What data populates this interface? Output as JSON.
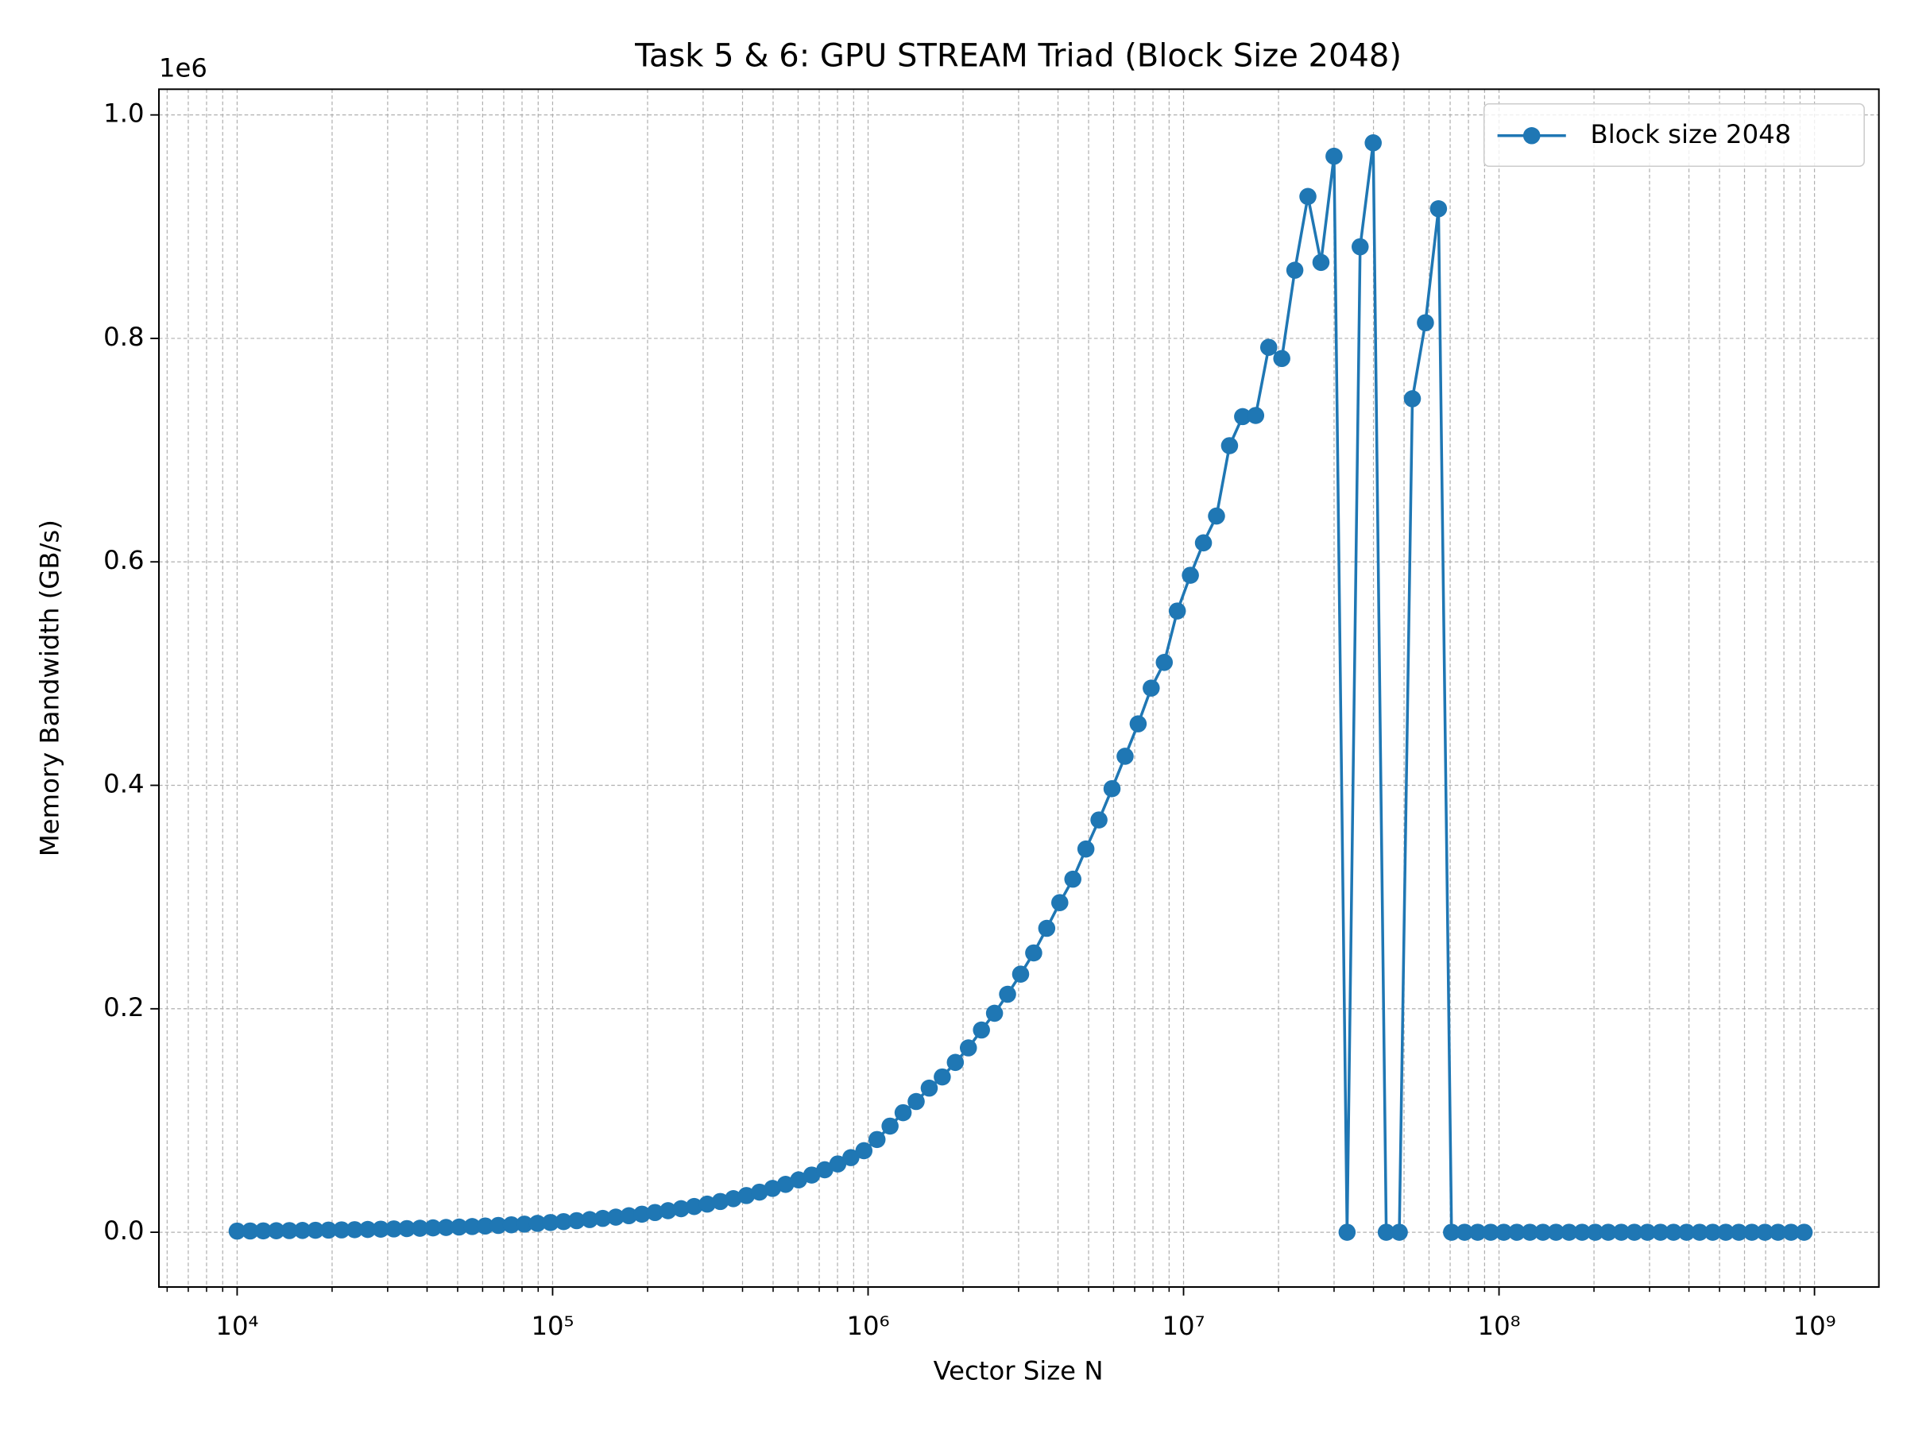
{
  "chart_data": {
    "type": "line",
    "title": "Task 5 & 6: GPU STREAM Triad (Block Size 2048)",
    "xlabel": "Vector Size N",
    "ylabel": "Memory Bandwidth (GB/s)",
    "y_offset_label": "1e6",
    "xscale": "log",
    "grid": true,
    "legend_position": "upper right",
    "xlim": [
      5650,
      1600000000
    ],
    "ylim": [
      -49000,
      1023000
    ],
    "xticks": [
      {
        "value": 10000,
        "label": "10⁴"
      },
      {
        "value": 100000,
        "label": "10⁵"
      },
      {
        "value": 1000000,
        "label": "10⁶"
      },
      {
        "value": 10000000,
        "label": "10⁷"
      },
      {
        "value": 100000000,
        "label": "10⁸"
      },
      {
        "value": 1000000000,
        "label": "10⁹"
      }
    ],
    "yticks": [
      {
        "value": 0,
        "label": "0.0"
      },
      {
        "value": 200000,
        "label": "0.2"
      },
      {
        "value": 400000,
        "label": "0.4"
      },
      {
        "value": 600000,
        "label": "0.6"
      },
      {
        "value": 800000,
        "label": "0.8"
      },
      {
        "value": 1000000,
        "label": "1.0"
      }
    ],
    "x": [
      10000,
      11000,
      12100,
      13310,
      14641,
      16105,
      17715,
      19487,
      21435,
      23579,
      25937,
      28531,
      31384,
      34522,
      37974,
      41772,
      45949,
      50544,
      55599,
      61159,
      67275,
      74002,
      81402,
      89543,
      98497,
      108347,
      119181,
      131099,
      144209,
      158630,
      174494,
      191943,
      211137,
      232251,
      255476,
      281024,
      309126,
      340039,
      374043,
      411447,
      452592,
      497851,
      547636,
      602400,
      662640,
      728904,
      801795,
      881974,
      970172,
      1067189,
      1173908,
      1291299,
      1420429,
      1562472,
      1718719,
      1890591,
      2079650,
      2287615,
      2516377,
      2768014,
      3044816,
      3349298,
      3684228,
      4052650,
      4457915,
      4903707,
      5394077,
      5933485,
      6526834,
      7179517,
      7897469,
      8687216,
      9555938,
      10511531,
      11562685,
      12718953,
      13990849,
      15389933,
      16928927,
      18621820,
      20484002,
      22532402,
      24785642,
      27264207,
      29990627,
      32989690,
      36288659,
      39917525,
      43909278,
      48300206,
      53130226,
      58443249,
      64287574,
      70716331,
      77787964,
      85566760,
      94123437,
      103535780,
      113889358,
      125278294,
      137806123,
      151586736,
      166745409,
      183419950,
      201761945,
      221938139,
      244131953,
      268545148,
      295399663,
      324939629,
      357433592,
      393176951,
      432494646,
      475744111,
      523318522,
      575650374,
      633215411,
      696536952,
      766190648,
      842809713,
      927090684
    ],
    "series": [
      {
        "name": "Block size 2048",
        "color": "#1f77b4",
        "values": [
          1035,
          1131,
          1236,
          1350,
          1476,
          1612,
          1762,
          1925,
          2104,
          2299,
          2512,
          2745,
          2999,
          3277,
          3581,
          3913,
          4276,
          4672,
          5105,
          5579,
          6096,
          6661,
          7279,
          7953,
          8691,
          9497,
          10377,
          11339,
          12390,
          13539,
          14794,
          16166,
          17665,
          19302,
          21092,
          23047,
          25183,
          27518,
          30069,
          32857,
          35903,
          39231,
          42868,
          46842,
          51185,
          55930,
          61115,
          66781,
          72972,
          83000,
          95000,
          107000,
          117000,
          129000,
          139000,
          152000,
          165000,
          181000,
          196000,
          213000,
          231000,
          250000,
          272000,
          295000,
          316000,
          343000,
          369000,
          397000,
          426000,
          455000,
          487000,
          510000,
          556000,
          588000,
          617000,
          641000,
          704000,
          730000,
          731000,
          792000,
          782000,
          861000,
          927000,
          868000,
          963000,
          0,
          882000,
          975000,
          0,
          0,
          746000,
          814000,
          916000,
          0,
          0,
          0,
          0,
          0,
          0,
          0,
          0,
          0,
          0,
          0,
          0,
          0,
          0,
          0,
          0,
          0,
          0,
          0,
          0,
          0,
          0,
          0,
          0,
          0,
          0,
          0,
          0
        ]
      }
    ]
  }
}
